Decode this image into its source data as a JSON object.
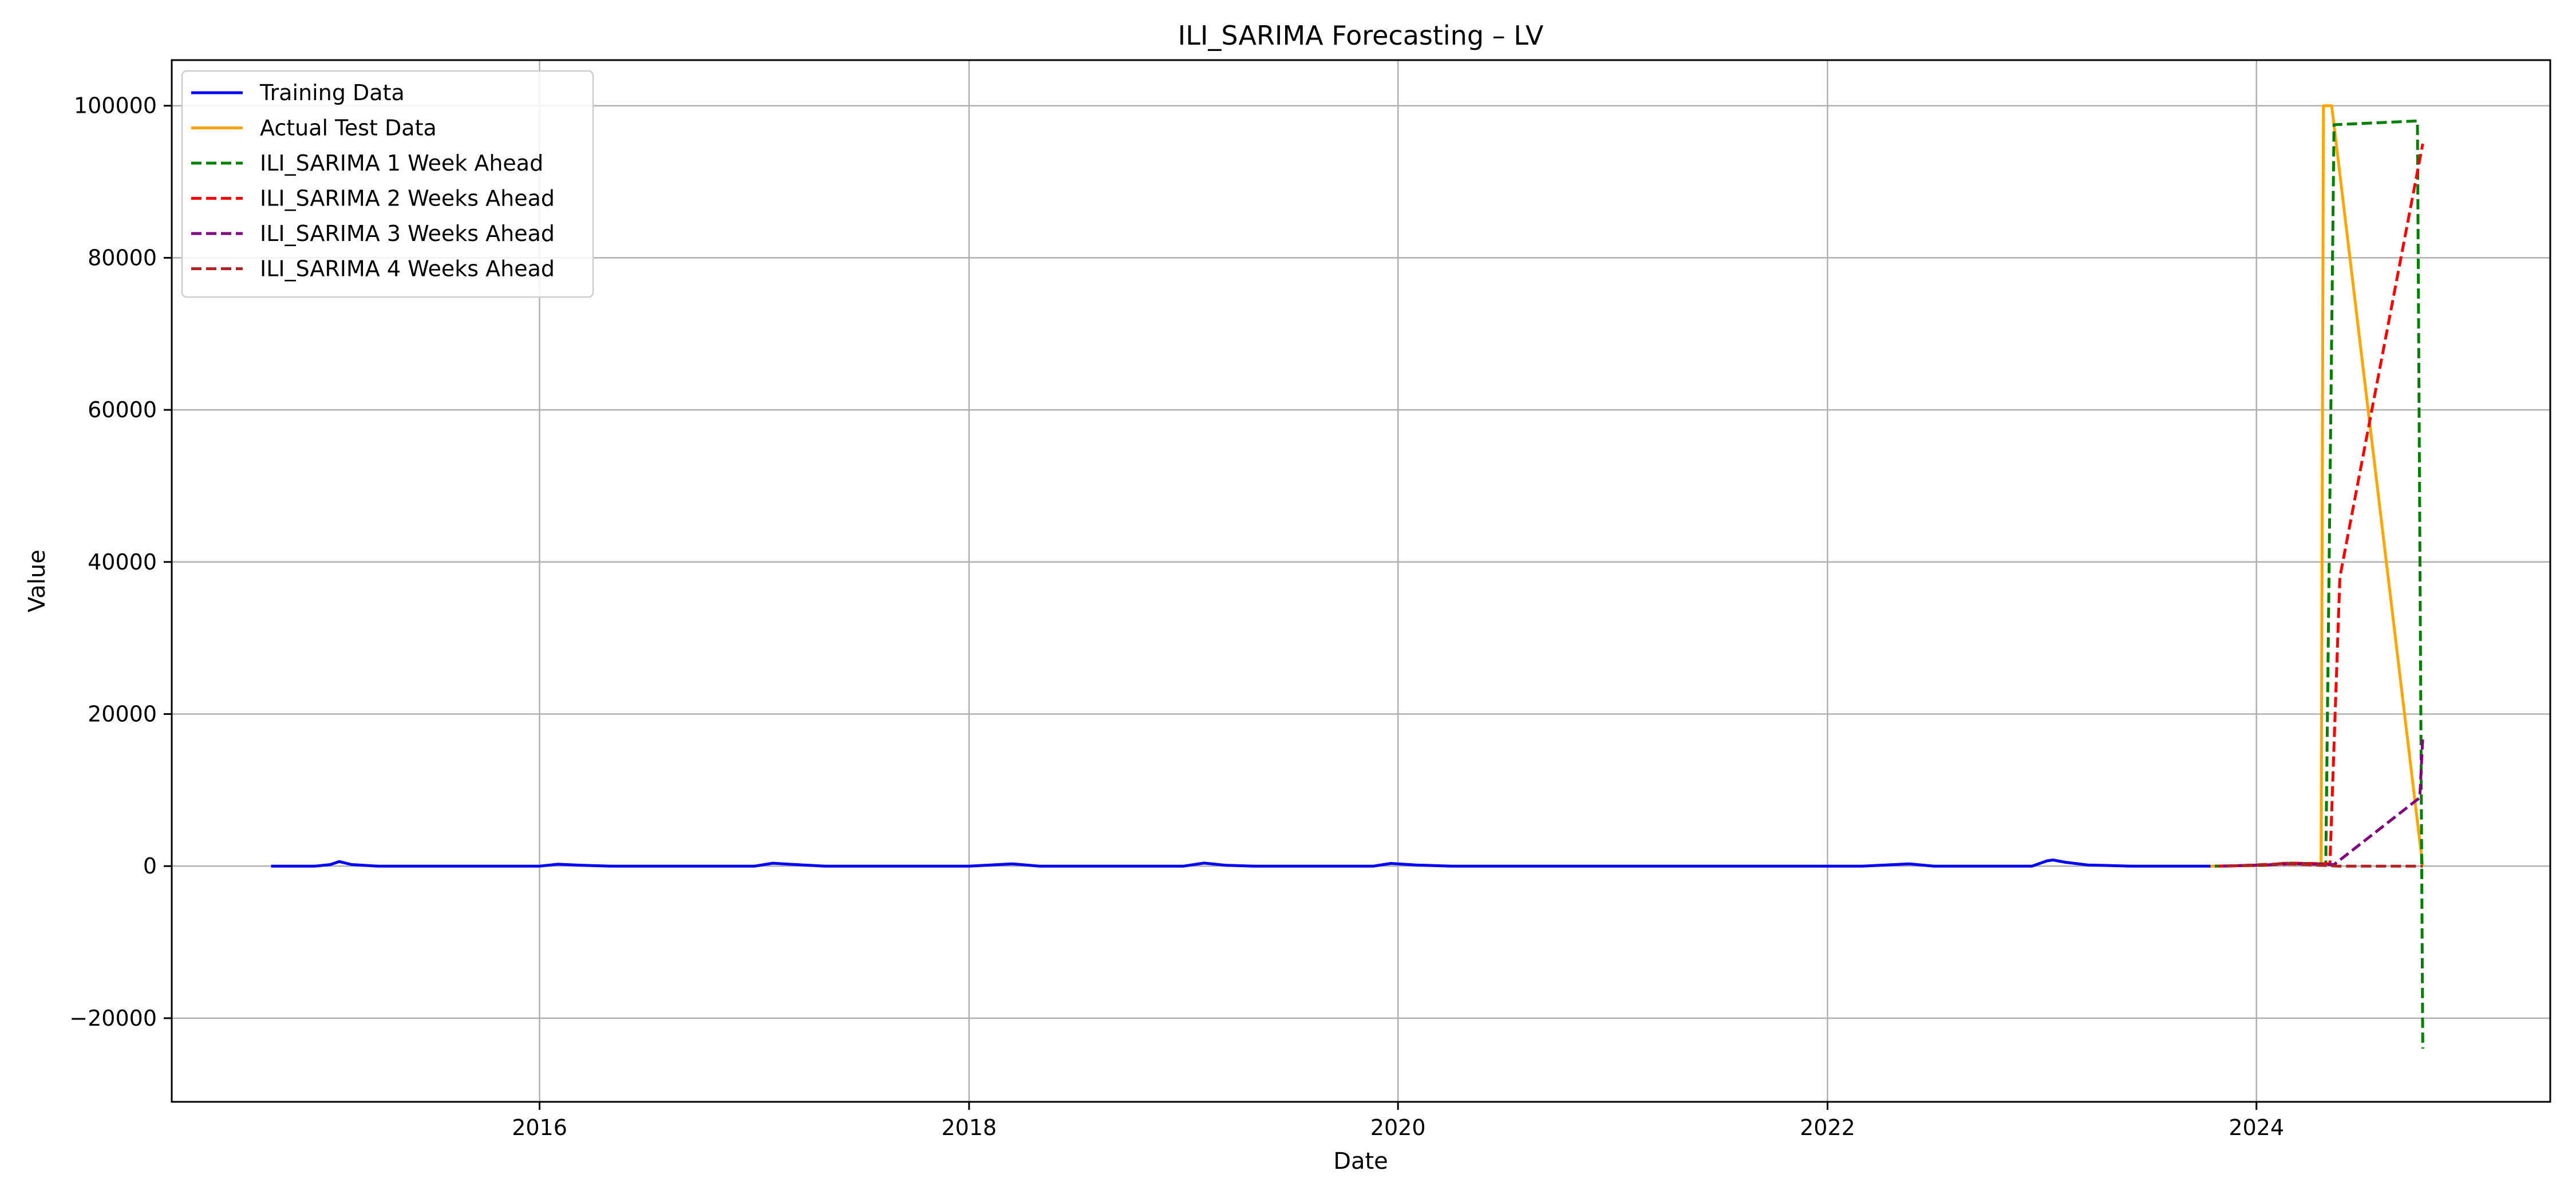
{
  "chart_data": {
    "type": "line",
    "title": "ILI_SARIMA Forecasting – LV",
    "xlabel": "Date",
    "ylabel": "Value",
    "xlim": [
      "2014-04-15",
      "2025-05-15"
    ],
    "ylim": [
      -31000,
      106000
    ],
    "x_ticks": [
      {
        "date": "2016-01-01",
        "label": "2016"
      },
      {
        "date": "2018-01-01",
        "label": "2018"
      },
      {
        "date": "2020-01-01",
        "label": "2020"
      },
      {
        "date": "2022-01-01",
        "label": "2022"
      },
      {
        "date": "2024-01-01",
        "label": "2024"
      }
    ],
    "y_ticks": [
      {
        "value": -20000,
        "label": "−20000"
      },
      {
        "value": 0,
        "label": "0"
      },
      {
        "value": 20000,
        "label": "20000"
      },
      {
        "value": 40000,
        "label": "40000"
      },
      {
        "value": 60000,
        "label": "60000"
      },
      {
        "value": 80000,
        "label": "80000"
      },
      {
        "value": 100000,
        "label": "100000"
      }
    ],
    "grid": true,
    "legend_position": "top-left",
    "series": [
      {
        "name": "Training Data",
        "color": "#0000ff",
        "style": "solid",
        "points": [
          [
            "2014-10-01",
            0
          ],
          [
            "2014-12-15",
            0
          ],
          [
            "2015-01-10",
            200
          ],
          [
            "2015-01-25",
            600
          ],
          [
            "2015-02-15",
            200
          ],
          [
            "2015-04-01",
            0
          ],
          [
            "2016-01-01",
            0
          ],
          [
            "2016-02-01",
            250
          ],
          [
            "2016-03-15",
            100
          ],
          [
            "2016-05-01",
            0
          ],
          [
            "2017-01-01",
            0
          ],
          [
            "2017-02-01",
            380
          ],
          [
            "2017-03-01",
            250
          ],
          [
            "2017-05-01",
            0
          ],
          [
            "2018-01-01",
            0
          ],
          [
            "2018-03-15",
            300
          ],
          [
            "2018-05-01",
            0
          ],
          [
            "2019-01-01",
            0
          ],
          [
            "2019-02-05",
            400
          ],
          [
            "2019-03-15",
            100
          ],
          [
            "2019-05-01",
            0
          ],
          [
            "2019-11-20",
            0
          ],
          [
            "2019-12-20",
            350
          ],
          [
            "2020-02-01",
            150
          ],
          [
            "2020-04-01",
            0
          ],
          [
            "2022-03-01",
            0
          ],
          [
            "2022-04-10",
            150
          ],
          [
            "2022-05-20",
            300
          ],
          [
            "2022-07-01",
            0
          ],
          [
            "2022-12-15",
            0
          ],
          [
            "2023-01-10",
            700
          ],
          [
            "2023-01-20",
            800
          ],
          [
            "2023-02-10",
            500
          ],
          [
            "2023-03-20",
            150
          ],
          [
            "2023-06-01",
            0
          ],
          [
            "2023-10-15",
            0
          ]
        ]
      },
      {
        "name": "Actual Test Data",
        "color": "#ffa500",
        "style": "solid",
        "points": [
          [
            "2023-10-15",
            0
          ],
          [
            "2024-01-15",
            100
          ],
          [
            "2024-02-15",
            350
          ],
          [
            "2024-04-20",
            300
          ],
          [
            "2024-04-24",
            100000
          ],
          [
            "2024-05-08",
            100000
          ],
          [
            "2024-10-10",
            0
          ]
        ]
      },
      {
        "name": "ILI_SARIMA 1 Week Ahead",
        "color": "#008000",
        "style": "dashed",
        "points": [
          [
            "2023-10-22",
            0
          ],
          [
            "2024-01-15",
            100
          ],
          [
            "2024-02-20",
            400
          ],
          [
            "2024-04-28",
            300
          ],
          [
            "2024-05-12",
            97500
          ],
          [
            "2024-10-01",
            98000
          ],
          [
            "2024-10-10",
            -24000
          ]
        ]
      },
      {
        "name": "ILI_SARIMA 2 Weeks Ahead",
        "color": "#ff0000",
        "style": "dashed",
        "points": [
          [
            "2023-10-29",
            0
          ],
          [
            "2024-01-20",
            150
          ],
          [
            "2024-02-25",
            400
          ],
          [
            "2024-05-05",
            300
          ],
          [
            "2024-05-22",
            38000
          ],
          [
            "2024-10-10",
            95000
          ]
        ]
      },
      {
        "name": "ILI_SARIMA 3 Weeks Ahead",
        "color": "#800080",
        "style": "dashed",
        "points": [
          [
            "2023-11-05",
            0
          ],
          [
            "2024-02-01",
            200
          ],
          [
            "2024-03-01",
            300
          ],
          [
            "2024-05-12",
            200
          ],
          [
            "2024-10-05",
            9000
          ],
          [
            "2024-10-10",
            17000
          ]
        ]
      },
      {
        "name": "ILI_SARIMA 4 Weeks Ahead",
        "color": "#b22222",
        "style": "dashed",
        "points": [
          [
            "2023-11-12",
            0
          ],
          [
            "2024-02-10",
            300
          ],
          [
            "2024-03-10",
            250
          ],
          [
            "2024-05-20",
            0
          ],
          [
            "2024-10-10",
            0
          ]
        ]
      }
    ]
  }
}
